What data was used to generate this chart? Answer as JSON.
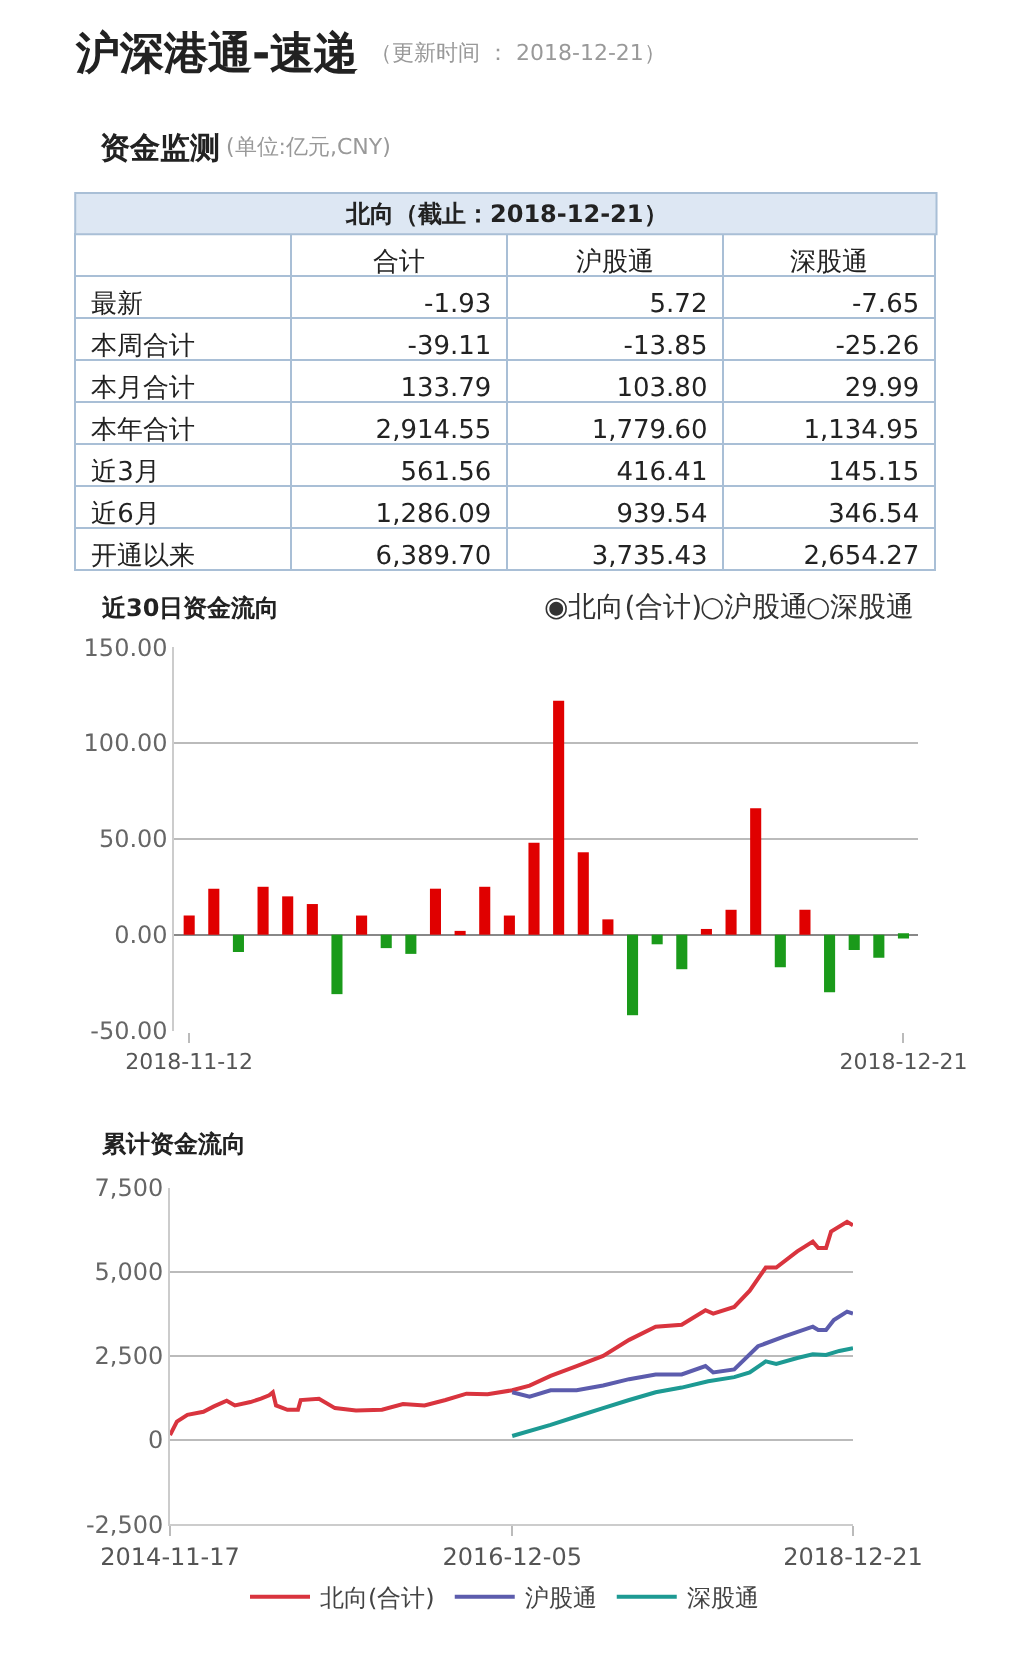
{
  "chart_data": [
    {
      "type": "other",
      "title": "沪深港通-速递",
      "subtitle": "（更新时间 ： 2018-12-21）",
      "annotations": [
        "资金监测",
        "(单位:亿元,CNY)"
      ],
      "xlabel": "北向（截止：2018-12-21）",
      "categories": [
        "合计",
        "沪股通",
        "深股通"
      ],
      "y_categories": [
        "最新",
        "本周合计",
        "本月合计",
        "本年合计",
        "近3月",
        "近6月",
        "开通以来"
      ],
      "cell_labels": [
        [
          "-1.93",
          "5.72",
          "-7.65"
        ],
        [
          "-39.11",
          "-13.85",
          "-25.26"
        ],
        [
          "133.79",
          "103.80",
          "29.99"
        ],
        [
          "2,914.55",
          "1,779.60",
          "1,134.95"
        ],
        [
          "561.56",
          "416.41",
          "145.15"
        ],
        [
          "1,286.09",
          "939.54",
          "346.54"
        ],
        [
          "6,389.70",
          "3,735.43",
          "2,654.27"
        ]
      ]
    },
    {
      "type": "bar",
      "title": "近30日资金流向",
      "annotations": [
        "◉北向(合计)",
        "○沪股通",
        "○深股通"
      ],
      "categories": [
        "2018-11-12",
        null,
        null,
        null,
        null,
        null,
        null,
        null,
        null,
        null,
        null,
        null,
        null,
        null,
        null,
        null,
        null,
        null,
        null,
        null,
        null,
        null,
        null,
        null,
        null,
        null,
        null,
        null,
        null,
        "2018-12-21"
      ],
      "values": [
        10,
        24,
        -9,
        25,
        20,
        16,
        -31,
        10,
        -7,
        -10,
        24,
        2,
        25,
        10,
        48,
        122,
        43,
        8,
        -42,
        -5,
        -18,
        3,
        13,
        66,
        -17,
        13,
        -30,
        -8,
        -12,
        -1.93
      ],
      "colors": [
        "#e00000",
        "#e00000",
        "#1a9a1a",
        "#e00000",
        "#e00000",
        "#e00000",
        "#1a9a1a",
        "#e00000",
        "#1a9a1a",
        "#1a9a1a",
        "#e00000",
        "#e00000",
        "#e00000",
        "#e00000",
        "#e00000",
        "#e00000",
        "#e00000",
        "#e00000",
        "#1a9a1a",
        "#1a9a1a",
        "#1a9a1a",
        "#e00000",
        "#e00000",
        "#e00000",
        "#1a9a1a",
        "#e00000",
        "#1a9a1a",
        "#1a9a1a",
        "#1a9a1a",
        "#1a9a1a"
      ],
      "ylim": [
        -50,
        150
      ],
      "yticks": [
        {
          "value": -50,
          "label": "-50.00"
        },
        {
          "value": 0,
          "label": "0.00"
        },
        {
          "value": 50,
          "label": "50.00"
        },
        {
          "value": 100,
          "label": "100.00"
        },
        {
          "value": 150,
          "label": "150.00"
        }
      ],
      "grid": "y"
    },
    {
      "type": "line",
      "title": "累计资金流向",
      "legend": "bottom",
      "grid": "y",
      "xlim": [
        "2014-11-17",
        "2018-12-21"
      ],
      "xticks": [
        "2014-11-17",
        "2016-12-05",
        "2018-12-21"
      ],
      "ylim": [
        -2500,
        7500
      ],
      "yticks": [
        {
          "value": -2500,
          "label": "-2,500"
        },
        {
          "value": 0,
          "label": "0"
        },
        {
          "value": 2500,
          "label": "2,500"
        },
        {
          "value": 5000,
          "label": "5,000"
        },
        {
          "value": 7500,
          "label": "7,500"
        }
      ],
      "series": [
        {
          "name": "北向(合计)",
          "color": "#d9343e",
          "x": [
            "2014-11-17",
            "2014-12-02",
            "2014-12-25",
            "2015-01-29",
            "2015-02-21",
            "2015-03-21",
            "2015-04-08",
            "2015-05-12",
            "2015-06-04",
            "2015-06-22",
            "2015-06-30",
            "2015-07-07",
            "2015-08-01",
            "2015-08-24",
            "2015-08-30",
            "2015-10-09",
            "2015-11-13",
            "2015-12-29",
            "2016-02-24",
            "2016-04-10",
            "2016-05-27",
            "2016-07-12",
            "2016-08-27",
            "2016-10-12",
            "2016-12-05",
            "2017-01-12",
            "2017-02-27",
            "2017-04-25",
            "2017-06-22",
            "2017-08-18",
            "2017-10-15",
            "2017-12-11",
            "2018-02-01",
            "2018-02-18",
            "2018-04-05",
            "2018-05-09",
            "2018-06-13",
            "2018-07-06",
            "2018-08-21",
            "2018-09-24",
            "2018-10-06",
            "2018-10-23",
            "2018-11-03",
            "2018-12-08",
            "2018-12-21"
          ],
          "values": [
            150,
            550,
            750,
            840,
            1000,
            1170,
            1030,
            1130,
            1230,
            1330,
            1420,
            1030,
            900,
            900,
            1190,
            1230,
            950,
            880,
            900,
            1070,
            1030,
            1190,
            1380,
            1360,
            1480,
            1620,
            1910,
            2200,
            2500,
            2980,
            3370,
            3430,
            3860,
            3760,
            3960,
            4440,
            5130,
            5130,
            5610,
            5900,
            5710,
            5710,
            6200,
            6490,
            6390
          ]
        },
        {
          "name": "沪股通",
          "color": "#5c5cad",
          "x": [
            "2016-12-05",
            "2017-01-12",
            "2017-02-27",
            "2017-04-25",
            "2017-06-22",
            "2017-08-18",
            "2017-10-15",
            "2017-12-11",
            "2018-02-01",
            "2018-02-18",
            "2018-04-05",
            "2018-05-27",
            "2018-07-24",
            "2018-09-24",
            "2018-10-06",
            "2018-10-23",
            "2018-11-09",
            "2018-12-08",
            "2018-12-21"
          ],
          "values": [
            1420,
            1290,
            1480,
            1480,
            1620,
            1810,
            1950,
            1950,
            2200,
            2010,
            2100,
            2790,
            3080,
            3370,
            3270,
            3270,
            3570,
            3820,
            3760
          ]
        },
        {
          "name": "深股通",
          "color": "#1d9a93",
          "x": [
            "2016-12-05",
            "2017-02-27",
            "2017-04-25",
            "2017-06-22",
            "2017-08-18",
            "2017-10-15",
            "2017-12-11",
            "2018-02-07",
            "2018-04-05",
            "2018-05-09",
            "2018-06-13",
            "2018-07-06",
            "2018-08-21",
            "2018-09-24",
            "2018-10-23",
            "2018-11-21",
            "2018-12-21"
          ],
          "values": [
            120,
            450,
            700,
            950,
            1190,
            1420,
            1560,
            1750,
            1870,
            2010,
            2340,
            2260,
            2440,
            2550,
            2530,
            2650,
            2730
          ]
        }
      ]
    }
  ]
}
